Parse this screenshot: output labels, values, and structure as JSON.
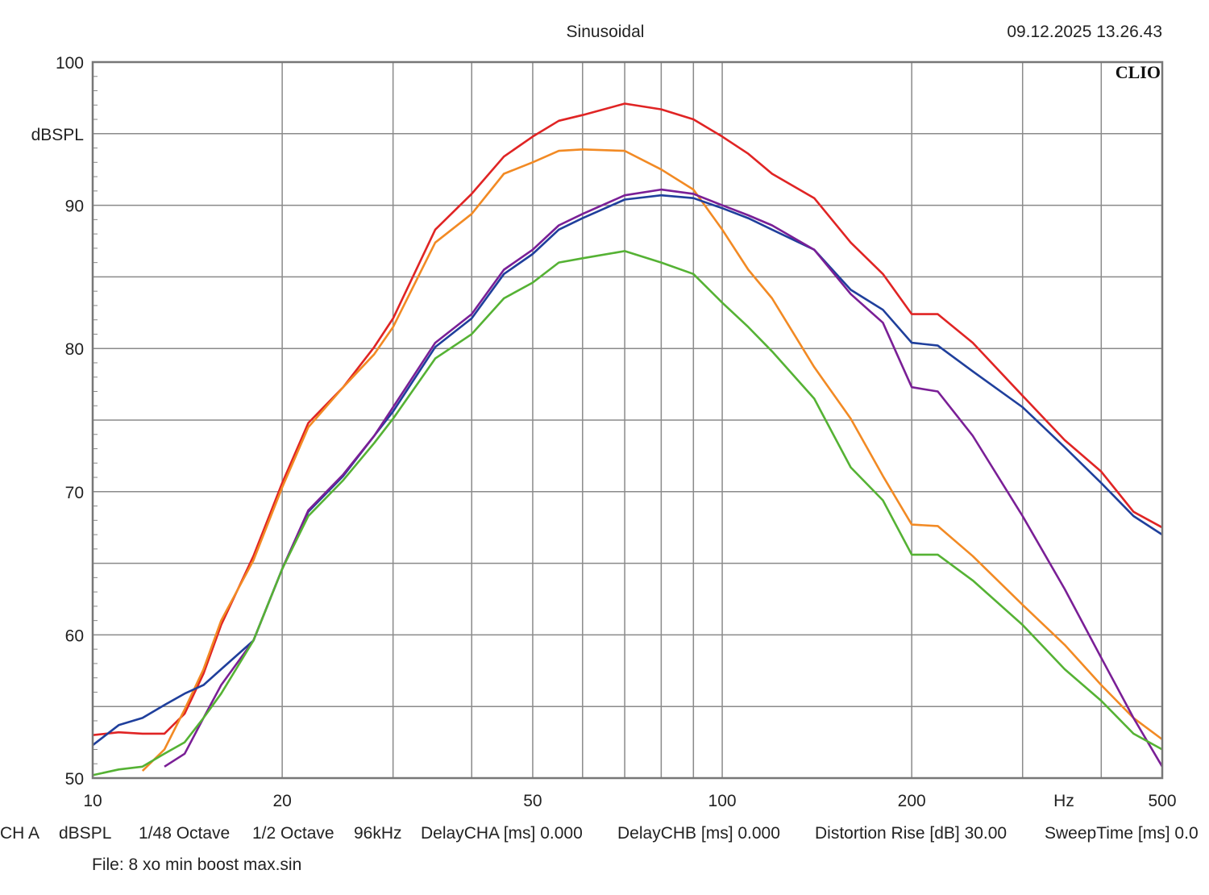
{
  "header": {
    "title": "Sinusoidal",
    "timestamp": "09.12.2025 13.26.43",
    "logo": "CLIO"
  },
  "footer": {
    "items": [
      "CH A",
      "dBSPL",
      "1/48 Octave",
      "1/2 Octave",
      "96kHz",
      "DelayCHA [ms] 0.000",
      "DelayCHB [ms] 0.000",
      "Distortion Rise [dB] 30.00",
      "SweepTime [ms] 0.0"
    ],
    "file": "File: 8 xo min boost max.sin"
  },
  "chart_data": {
    "type": "line",
    "title": "Sinusoidal",
    "ylabel": "dBSPL",
    "xlabel": "Hz",
    "xscale": "log",
    "xlim": [
      10,
      500
    ],
    "ylim": [
      50,
      100
    ],
    "grid": true,
    "x_tick_labels": [
      "10",
      "20",
      "50",
      "100",
      "200",
      "500"
    ],
    "y_tick_labels": [
      "100",
      "90",
      "80",
      "70",
      "60",
      "50"
    ],
    "x": [
      10,
      11,
      12,
      13,
      14,
      15,
      16,
      18,
      20,
      22,
      25,
      28,
      30,
      35,
      40,
      45,
      50,
      55,
      60,
      70,
      80,
      90,
      100,
      110,
      120,
      140,
      160,
      180,
      200,
      220,
      250,
      300,
      350,
      400,
      450,
      500
    ],
    "series": [
      {
        "color": "#e02424",
        "values": [
          53.0,
          53.2,
          53.1,
          53.1,
          54.5,
          57.3,
          60.7,
          65.5,
          70.6,
          74.8,
          77.3,
          80.1,
          82.1,
          88.3,
          90.8,
          93.4,
          94.8,
          95.9,
          96.3,
          97.1,
          96.7,
          96.0,
          94.8,
          93.6,
          92.2,
          90.5,
          87.4,
          85.2,
          82.4,
          82.4,
          80.4,
          76.7,
          73.6,
          71.4,
          68.6,
          67.5
        ]
      },
      {
        "color": "#f28a24",
        "values": [
          null,
          null,
          50.5,
          52.0,
          54.8,
          57.6,
          61.0,
          65.2,
          70.3,
          74.5,
          77.3,
          79.6,
          81.5,
          87.4,
          89.4,
          92.2,
          93.0,
          93.8,
          93.9,
          93.8,
          92.5,
          91.1,
          88.3,
          85.5,
          83.5,
          78.7,
          75.1,
          71.1,
          67.7,
          67.6,
          65.5,
          62.1,
          59.3,
          56.5,
          54.2,
          52.7
        ]
      },
      {
        "color": "#1f3f9c",
        "values": [
          52.3,
          53.7,
          54.2,
          55.1,
          55.9,
          56.5,
          57.6,
          59.6,
          64.6,
          68.6,
          71.1,
          73.9,
          75.6,
          80.1,
          82.1,
          85.2,
          86.6,
          88.3,
          89.1,
          90.4,
          90.7,
          90.5,
          89.8,
          89.1,
          88.3,
          86.9,
          84.1,
          82.7,
          80.4,
          80.2,
          78.4,
          75.9,
          73.1,
          70.6,
          68.3,
          67.0
        ]
      },
      {
        "color": "#7a1f96",
        "values": [
          null,
          null,
          null,
          50.8,
          51.7,
          54.2,
          56.5,
          59.6,
          64.6,
          68.7,
          71.2,
          73.9,
          75.9,
          80.4,
          82.4,
          85.5,
          86.9,
          88.6,
          89.4,
          90.7,
          91.1,
          90.8,
          90.0,
          89.3,
          88.6,
          86.9,
          83.8,
          81.8,
          77.3,
          77.0,
          73.9,
          68.3,
          63.2,
          58.4,
          54.2,
          50.8
        ]
      },
      {
        "color": "#55b234",
        "values": [
          50.2,
          50.6,
          50.8,
          51.7,
          52.5,
          54.2,
          55.9,
          59.6,
          64.6,
          68.3,
          70.8,
          73.4,
          75.1,
          79.3,
          81.0,
          83.5,
          84.6,
          86.0,
          86.3,
          86.8,
          86.0,
          85.2,
          83.2,
          81.5,
          79.8,
          76.5,
          71.7,
          69.4,
          65.6,
          65.6,
          63.8,
          60.7,
          57.6,
          55.4,
          53.1,
          52.0
        ]
      }
    ]
  }
}
